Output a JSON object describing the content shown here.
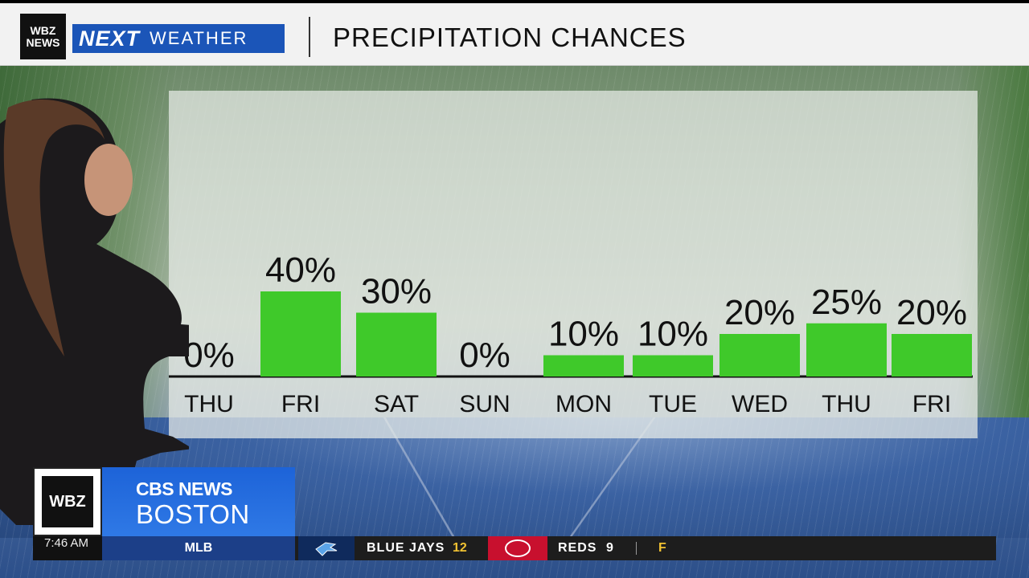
{
  "header": {
    "station_logo": "WBZ NEWS",
    "brand_next": "NEXT",
    "brand_weather": "WEATHER",
    "title": "PRECIPITATION CHANCES"
  },
  "chart_data": {
    "type": "bar",
    "title": "PRECIPITATION CHANCES",
    "categories": [
      "THU",
      "FRI",
      "SAT",
      "SUN",
      "MON",
      "TUE",
      "WED",
      "THU",
      "FRI"
    ],
    "values": [
      0,
      40,
      30,
      0,
      10,
      10,
      20,
      25,
      20
    ],
    "value_labels": [
      "0%",
      "40%",
      "30%",
      "0%",
      "10%",
      "10%",
      "20%",
      "25%",
      "20%"
    ],
    "unit": "%",
    "ylim": [
      0,
      100
    ],
    "grid": false,
    "legend": "none",
    "bar_color": "#3fc92a"
  },
  "lower_third": {
    "station": "WBZ",
    "network": "CBS NEWS",
    "city": "BOSTON"
  },
  "ticker": {
    "time": "7:46 AM",
    "league": "MLB",
    "team1": "BLUE JAYS",
    "team1_score": "12",
    "team2": "REDS",
    "team2_score": "9",
    "status": "F"
  },
  "colors": {
    "header_bg": "#f2f2f2",
    "brand_blue": "#1b55b8",
    "bar_green": "#3fc92a",
    "cbs_blue": "#1d63d8",
    "score_yellow": "#f1c232"
  }
}
